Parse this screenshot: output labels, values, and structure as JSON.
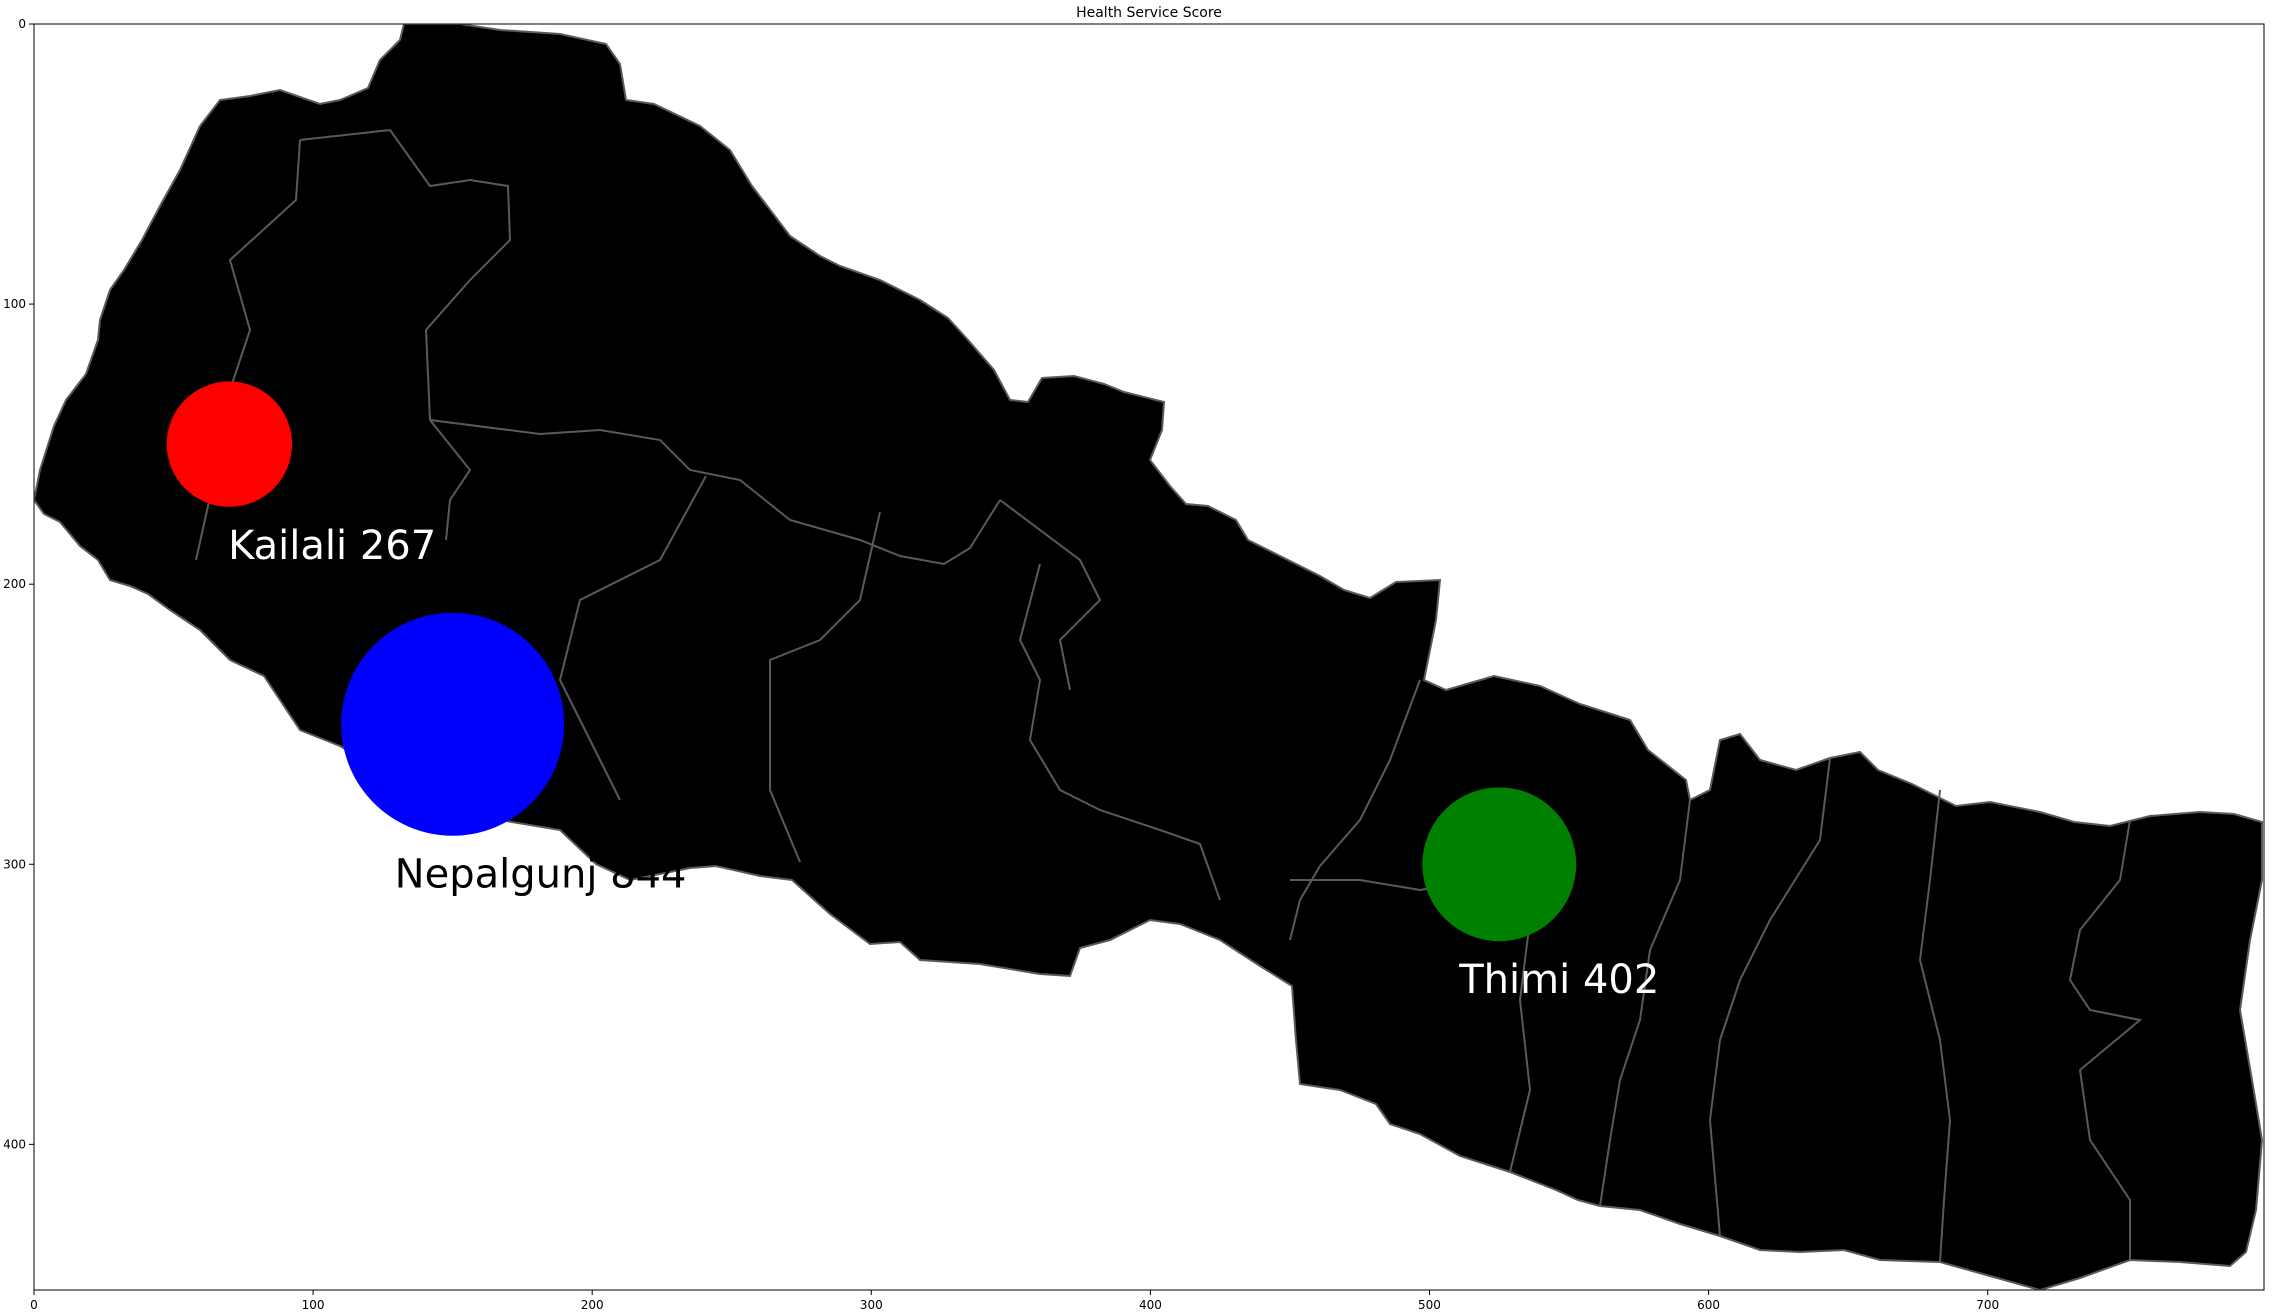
{
  "chart_data": {
    "type": "scatter",
    "title": "Health Service Score",
    "xlabel": "",
    "ylabel": "",
    "xlim": [
      0,
      799
    ],
    "ylim": [
      452,
      0
    ],
    "x_ticks": [
      0,
      100,
      200,
      300,
      400,
      500,
      600,
      700
    ],
    "y_ticks": [
      0,
      100,
      200,
      300,
      400
    ],
    "x_tick_labels": [
      "0",
      "100",
      "200",
      "300",
      "400",
      "500",
      "600",
      "700"
    ],
    "y_tick_labels": [
      "0",
      "100",
      "200",
      "300",
      "400"
    ],
    "grid": false,
    "legend": "none",
    "background": "map of Nepal districts",
    "map_fill": "#000000",
    "map_border": "#5a5a5a",
    "points": [
      {
        "label": "Kailali 267",
        "x": 70,
        "y": 150,
        "score": 267,
        "color": "#ff0000",
        "label_color": "#ffffff"
      },
      {
        "label": "Nepalgunj 844",
        "x": 150,
        "y": 250,
        "score": 844,
        "color": "#0000ff",
        "label_color": "#000000"
      },
      {
        "label": "Thimi 402",
        "x": 525,
        "y": 300,
        "score": 402,
        "color": "#008000",
        "label_color": "#ffffff"
      }
    ]
  }
}
